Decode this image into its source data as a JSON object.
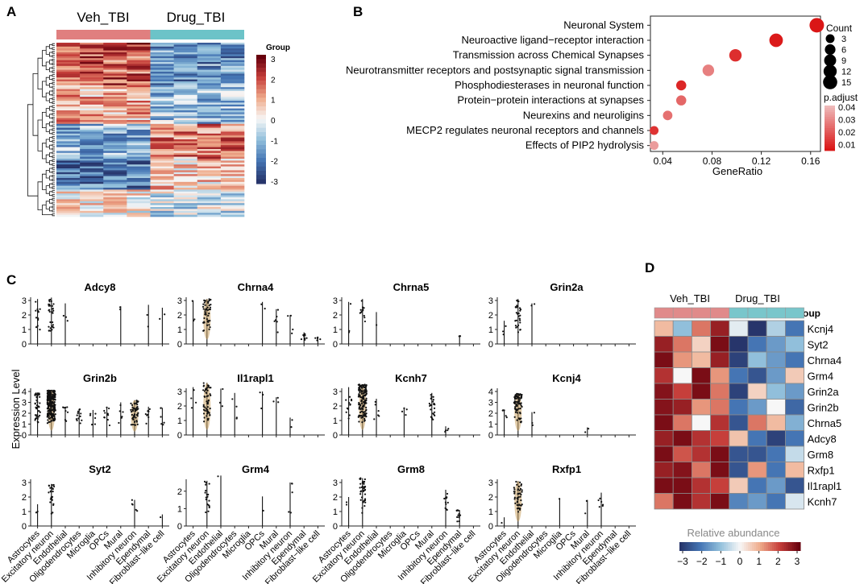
{
  "panels": {
    "a": "A",
    "b": "B",
    "c": "C",
    "d": "D"
  },
  "chart_data": [
    {
      "panel": "A",
      "type": "heatmap",
      "groups": [
        "Veh_TBI",
        "Drug_TBI"
      ],
      "group_colors": [
        "#e07f7f",
        "#6cc3c8"
      ],
      "legend_title": "Group",
      "color_scale_ticks": [
        3,
        2,
        1,
        0,
        -1,
        -2,
        -3
      ],
      "n_columns": 8,
      "n_rows": 90
    },
    {
      "panel": "B",
      "type": "scatter",
      "title": "",
      "xlabel": "GeneRatio",
      "xticks": [
        "0.04",
        "0.08",
        "0.12",
        "0.16"
      ],
      "xlim": [
        0.03,
        0.168
      ],
      "terms": [
        {
          "term": "Neuronal System",
          "gene_ratio": 0.165,
          "count": 16,
          "p_adjust": 0.002
        },
        {
          "term": "Neuroactive ligand−receptor interaction",
          "gene_ratio": 0.132,
          "count": 13,
          "p_adjust": 0.003
        },
        {
          "term": "Transmission across Chemical Synapses",
          "gene_ratio": 0.099,
          "count": 10,
          "p_adjust": 0.008
        },
        {
          "term": "Neurotransmitter receptors and postsynaptic signal transmission",
          "gene_ratio": 0.077,
          "count": 8,
          "p_adjust": 0.028
        },
        {
          "term": "Phosphodiesterases in neuronal function",
          "gene_ratio": 0.055,
          "count": 5,
          "p_adjust": 0.006
        },
        {
          "term": "Protein−protein interactions at synapses",
          "gene_ratio": 0.055,
          "count": 5,
          "p_adjust": 0.022
        },
        {
          "term": "Neurexins and neuroligins",
          "gene_ratio": 0.044,
          "count": 4,
          "p_adjust": 0.024
        },
        {
          "term": "MECP2 regulates neuronal receptors and channels",
          "gene_ratio": 0.033,
          "count": 3,
          "p_adjust": 0.009
        },
        {
          "term": "Effects of PIP2 hydrolysis",
          "gene_ratio": 0.033,
          "count": 3,
          "p_adjust": 0.035
        }
      ],
      "size_legend_title": "Count",
      "size_legend": [
        3,
        6,
        9,
        12,
        15
      ],
      "color_legend_title": "p.adjust",
      "color_legend_ticks": [
        "0.04",
        "0.03",
        "0.02",
        "0.01"
      ]
    },
    {
      "panel": "C",
      "type": "scatter",
      "subtype": "violin",
      "ylabel": "Expression Level",
      "cell_types": [
        "Astrocytes",
        "Excitatory neuron",
        "Endothelial",
        "Oligodendrocytes",
        "Microglia",
        "OPCs",
        "Mural",
        "Inhibitory neuron",
        "Ependymal",
        "Fibroblast−like cell"
      ],
      "genes": [
        {
          "gene": "Adcy8",
          "max": [
            3.1,
            3.2,
            2.8,
            0,
            0,
            0,
            2.6,
            0,
            2.7,
            2.5
          ],
          "n": [
            12,
            30,
            3,
            0,
            0,
            0,
            2,
            0,
            2,
            2
          ]
        },
        {
          "gene": "Chrna4",
          "max": [
            3.0,
            3.1,
            0,
            0,
            0,
            2.9,
            2.4,
            2.0,
            0.8,
            0.5
          ],
          "n": [
            3,
            45,
            0,
            0,
            0,
            2,
            6,
            4,
            10,
            6
          ]
        },
        {
          "gene": "Chrna5",
          "max": [
            2.9,
            3.1,
            2.2,
            0,
            0,
            0,
            0,
            0,
            0.6,
            0
          ],
          "n": [
            3,
            12,
            1,
            0,
            0,
            0,
            0,
            0,
            2,
            0
          ]
        },
        {
          "gene": "Grin2a",
          "max": [
            1.6,
            3.1,
            2.8,
            0,
            0,
            0,
            0,
            0,
            0,
            0
          ],
          "n": [
            3,
            30,
            2,
            0,
            0,
            0,
            0,
            0,
            0,
            0
          ]
        },
        {
          "gene": "Grin2b",
          "max": [
            3.9,
            4.1,
            2.6,
            2.4,
            2.3,
            2.6,
            3.0,
            3.2,
            2.6,
            2.5
          ],
          "n": [
            40,
            260,
            8,
            12,
            6,
            12,
            6,
            55,
            10,
            6
          ]
        },
        {
          "gene": "Il1rapl1",
          "max": [
            3.3,
            3.6,
            3.2,
            2.9,
            0,
            3.0,
            2.6,
            1.2,
            0,
            0
          ],
          "n": [
            4,
            55,
            3,
            4,
            0,
            3,
            3,
            2,
            0,
            0
          ]
        },
        {
          "gene": "Kcnh7",
          "max": [
            3.3,
            3.5,
            2.5,
            0,
            1.9,
            0,
            2.9,
            0.6,
            0,
            0
          ],
          "n": [
            12,
            130,
            6,
            0,
            4,
            0,
            25,
            4,
            0,
            0
          ]
        },
        {
          "gene": "Kcnj4",
          "max": [
            2.3,
            3.8,
            2.1,
            0,
            0,
            0,
            0.7,
            0,
            0,
            0
          ],
          "n": [
            5,
            80,
            3,
            0,
            0,
            0,
            2,
            0,
            0,
            0
          ]
        },
        {
          "gene": "Syt2",
          "max": [
            1.5,
            2.9,
            0,
            0,
            0,
            0,
            0,
            1.8,
            0,
            0.8
          ],
          "n": [
            2,
            25,
            0,
            0,
            0,
            0,
            0,
            5,
            0,
            1
          ]
        },
        {
          "gene": "Grm4",
          "max": [
            0,
            2.6,
            2.9,
            0,
            0,
            1.7,
            0,
            2.5,
            0,
            0
          ],
          "n": [
            0,
            18,
            1,
            0,
            0,
            1,
            0,
            5,
            0,
            0
          ]
        },
        {
          "gene": "Grm8",
          "max": [
            2.0,
            3.3,
            0,
            0,
            0,
            0,
            0,
            2.5,
            1.1,
            0
          ],
          "n": [
            2,
            40,
            0,
            0,
            0,
            0,
            0,
            12,
            12,
            0
          ]
        },
        {
          "gene": "Rxfp1",
          "max": [
            0.6,
            3.1,
            0,
            0,
            1.9,
            0,
            1.8,
            2.3,
            0,
            0
          ],
          "n": [
            1,
            45,
            0,
            0,
            1,
            0,
            2,
            6,
            0,
            0
          ]
        }
      ]
    },
    {
      "panel": "D",
      "type": "heatmap",
      "groups": [
        "Veh_TBI",
        "Drug_TBI"
      ],
      "group_label": "Group",
      "rows": [
        "Kcnj4",
        "Syt2",
        "Chrna4",
        "Grm4",
        "Grin2a",
        "Grin2b",
        "Chrna5",
        "Adcy8",
        "Grm8",
        "Rxfp1",
        "Il1rapl1",
        "Kcnh7"
      ],
      "values": [
        [
          0.8,
          -1.0,
          1.5,
          2.5,
          -0.2,
          -3.0,
          -0.7,
          -2.0
        ],
        [
          2.5,
          1.5,
          0.5,
          2.8,
          -3.0,
          -2.0,
          -1.5,
          -1.0
        ],
        [
          2.8,
          1.2,
          0.8,
          2.5,
          -2.8,
          -1.0,
          -1.5,
          -2.0
        ],
        [
          2.2,
          0.0,
          2.8,
          1.2,
          -2.0,
          -2.5,
          -1.5,
          0.6
        ],
        [
          2.7,
          2.0,
          2.8,
          1.5,
          -2.8,
          0.5,
          -1.0,
          -1.5
        ],
        [
          2.7,
          2.5,
          1.2,
          1.5,
          -2.0,
          -1.5,
          0.0,
          -2.2
        ],
        [
          2.8,
          1.5,
          0.0,
          2.2,
          -2.5,
          1.5,
          0.8,
          -1.2
        ],
        [
          2.5,
          2.8,
          2.2,
          2.0,
          0.7,
          -2.0,
          -2.8,
          -2.0
        ],
        [
          2.8,
          1.8,
          2.2,
          2.8,
          -2.5,
          -2.5,
          -2.0,
          -0.5
        ],
        [
          2.5,
          2.7,
          1.5,
          2.8,
          -2.5,
          1.2,
          -2.0,
          0.8
        ],
        [
          2.8,
          2.8,
          2.2,
          2.0,
          0.6,
          -2.0,
          -1.5,
          -2.5
        ],
        [
          1.5,
          2.8,
          2.2,
          2.8,
          -1.8,
          -1.5,
          -2.0,
          -0.3
        ]
      ],
      "color_legend_title": "Relative abundance",
      "color_legend_ticks": [
        "−3",
        "−2",
        "−1",
        "0",
        "1",
        "2",
        "3"
      ]
    }
  ]
}
